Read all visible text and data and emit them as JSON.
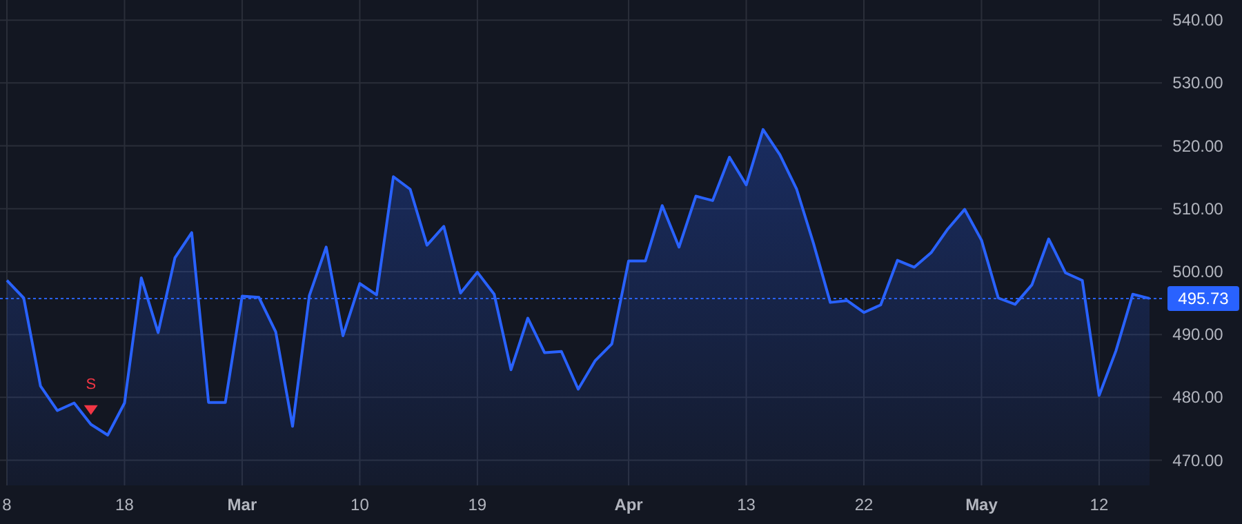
{
  "chart_data": {
    "type": "area",
    "categories": [
      "8",
      null,
      null,
      null,
      null,
      null,
      null,
      "18",
      null,
      null,
      null,
      null,
      null,
      null,
      "Mar",
      null,
      null,
      null,
      null,
      null,
      null,
      "10",
      null,
      null,
      null,
      null,
      null,
      null,
      "19",
      null,
      null,
      null,
      null,
      null,
      null,
      null,
      null,
      "Apr",
      null,
      null,
      null,
      null,
      null,
      null,
      "13",
      null,
      null,
      null,
      null,
      null,
      null,
      "22",
      null,
      null,
      null,
      null,
      null,
      null,
      "May",
      null,
      null,
      null,
      null,
      null,
      null,
      "12",
      null,
      null,
      null
    ],
    "series": [
      {
        "color": "#2962ff",
        "values": [
          498.6,
          495.8,
          481.8,
          477.9,
          479.1,
          475.7,
          474.0,
          479.1,
          499.0,
          490.3,
          502.2,
          506.2,
          479.2,
          479.2,
          496.1,
          495.9,
          490.4,
          475.4,
          496.2,
          503.9,
          489.8,
          498.1,
          496.3,
          515.1,
          513.1,
          504.2,
          507.2,
          496.6,
          499.9,
          496.4,
          484.4,
          492.6,
          487.1,
          487.3,
          481.3,
          485.8,
          488.5,
          501.7,
          501.7,
          510.5,
          503.9,
          512.0,
          511.3,
          518.2,
          513.8,
          522.6,
          518.6,
          513.1,
          504.5,
          495.1,
          495.4,
          493.5,
          494.7,
          501.8,
          500.7,
          503.0,
          506.8,
          509.9,
          505.0,
          495.8,
          494.8,
          497.9,
          505.2,
          499.8,
          498.6,
          480.3,
          487.4,
          496.4,
          495.73
        ]
      },
      {
        "type": "scatter",
        "color": "#f23645",
        "marker": "triangle",
        "values": [
          null,
          null,
          null,
          null,
          null,
          478.1,
          null,
          null,
          null,
          null,
          null,
          null,
          null,
          null,
          null,
          null,
          null,
          null,
          null,
          null,
          null,
          null,
          null,
          null,
          null,
          null,
          null,
          null,
          null,
          null,
          null,
          null,
          null,
          null,
          null,
          null,
          null,
          null,
          null,
          null,
          null,
          null,
          null,
          null,
          null,
          null,
          null,
          null,
          null,
          null,
          null,
          null,
          null,
          null,
          null,
          null,
          null,
          null,
          null,
          null,
          null,
          null,
          null,
          null,
          null,
          null,
          null,
          null,
          null
        ]
      }
    ],
    "annotations": [
      "S"
    ],
    "ylim": [
      466,
      543.2
    ],
    "yticks": [
      {
        "value": 470,
        "label": "470.00"
      },
      {
        "value": 480,
        "label": "480.00"
      },
      {
        "value": 490,
        "label": "490.00"
      },
      {
        "value": 500,
        "label": "500.00"
      },
      {
        "value": 510,
        "label": "510.00"
      },
      {
        "value": 520,
        "label": "520.00"
      },
      {
        "value": 530,
        "label": "530.00"
      },
      {
        "value": 540,
        "label": "540.00"
      }
    ],
    "ref_lines": [
      {
        "axis": "y",
        "value": 495.73,
        "label": "495.73",
        "color": "#2962ff",
        "line_style": "dotted"
      }
    ],
    "grid": true
  }
}
